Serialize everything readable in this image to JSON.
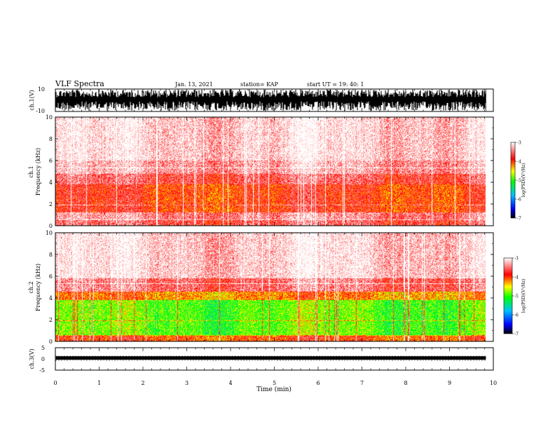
{
  "header": {
    "title": "VLF Spectra",
    "date": "Jan. 13, 2021",
    "station": "station= KAP",
    "start": "start  UT =   19: 40: 1"
  },
  "chart_data": [
    {
      "type": "line",
      "name": "ch1-waveform",
      "ylabel": "ch.1(V)",
      "yticklabels": [
        "10",
        "-10"
      ],
      "ylim": [
        -10,
        10
      ],
      "x_range": [
        0,
        10
      ],
      "note_level": "saturated"
    },
    {
      "type": "heatmap",
      "name": "ch1-spectrogram",
      "ylabel_line1": "ch.1",
      "ylabel_line2": "Frequency (kHz)",
      "ylim": [
        0,
        10
      ],
      "yticklabels": [
        "0",
        "2",
        "4",
        "6",
        "8",
        "10"
      ],
      "data_end_min": 9.83,
      "bands_khz_to_log": [
        {
          "f0": 0.0,
          "f1": 0.6,
          "log": -3.6
        },
        {
          "f0": 0.6,
          "f1": 1.2,
          "log": -3.4
        },
        {
          "f0": 1.2,
          "f1": 3.8,
          "log": -3.9
        },
        {
          "f0": 3.8,
          "f1": 4.8,
          "log": -3.6
        },
        {
          "f0": 4.8,
          "f1": 6.0,
          "log": -3.3
        },
        {
          "f0": 6.0,
          "f1": 10.0,
          "log": -3.1
        }
      ]
    },
    {
      "type": "heatmap",
      "name": "ch2-spectrogram",
      "ylabel_line1": "ch.2",
      "ylabel_line2": "Frequency (kHz)",
      "ylim": [
        0,
        10
      ],
      "yticklabels": [
        "0",
        "2",
        "4",
        "6",
        "8",
        "10"
      ],
      "data_end_min": 9.83,
      "bands_khz_to_log": [
        {
          "f0": 0.0,
          "f1": 0.5,
          "log": -4.0
        },
        {
          "f0": 0.5,
          "f1": 3.8,
          "log": -4.9
        },
        {
          "f0": 3.8,
          "f1": 4.6,
          "log": -4.2
        },
        {
          "f0": 4.6,
          "f1": 5.8,
          "log": -3.5
        },
        {
          "f0": 5.8,
          "f1": 10.0,
          "log": -3.1
        }
      ]
    },
    {
      "type": "line",
      "name": "ch3-waveform",
      "ylabel": "ch.3(V)",
      "yticklabels": [
        "5",
        "0",
        "-5"
      ],
      "ylim": [
        -5,
        5
      ],
      "level_v": 0.4
    }
  ],
  "colorbars": [
    {
      "label": "log(PSD)(V²/Hz)",
      "ticks": [
        "-3",
        "-4",
        "-5",
        "-6",
        "-7"
      ],
      "range": [
        -7,
        -3
      ]
    },
    {
      "label": "log(PSD)(V²/Hz)",
      "ticks": [
        "-3",
        "-4",
        "-5",
        "-6",
        "-7"
      ],
      "range": [
        -7,
        -3
      ]
    }
  ],
  "x_axis": {
    "label": "Time (min)",
    "range": [
      0,
      10
    ],
    "ticks": [
      "0",
      "1",
      "2",
      "3",
      "4",
      "5",
      "6",
      "7",
      "8",
      "9",
      "10"
    ]
  }
}
